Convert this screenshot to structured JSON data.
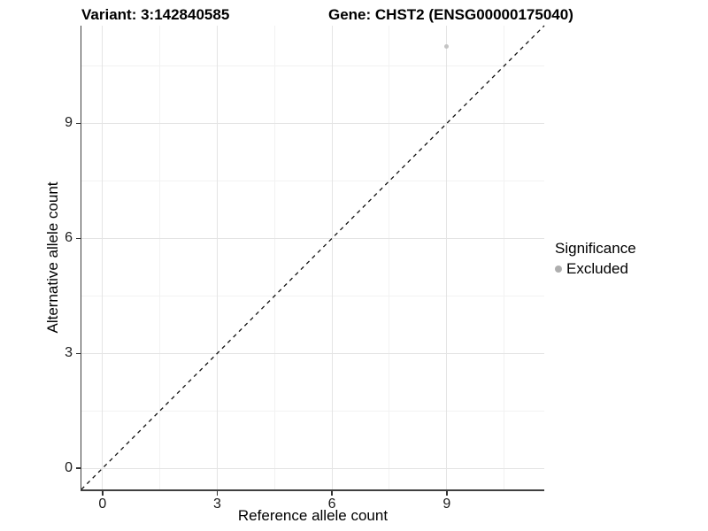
{
  "chart_data": {
    "type": "scatter",
    "title_left": "Variant: 3:142840585",
    "title_right": "Gene: CHST2 (ENSG00000175040)",
    "xlabel": "Reference allele count",
    "ylabel": "Alternative allele count",
    "xlim": [
      -0.55,
      11.55
    ],
    "ylim": [
      -0.55,
      11.55
    ],
    "x_major_ticks": [
      0,
      3,
      6,
      9
    ],
    "y_major_ticks": [
      0,
      3,
      6,
      9
    ],
    "x_minor_ticks": [
      1.5,
      4.5,
      7.5,
      10.5
    ],
    "y_minor_ticks": [
      1.5,
      4.5,
      7.5,
      10.5
    ],
    "grid": true,
    "points": [
      {
        "x": 9,
        "y": 11,
        "significance": "Excluded"
      }
    ],
    "reference_line": {
      "type": "identity",
      "style": "dashed"
    },
    "legend": {
      "title": "Significance",
      "position": "right",
      "entries": [
        {
          "label": "Excluded",
          "color": "#aeaeae"
        }
      ]
    },
    "colors": {
      "point": "#c4c4c4",
      "grid_major": "#e4e4e4",
      "grid_minor": "#f2f2f2",
      "axis_line": "#3f3f3f",
      "tick": "#333333",
      "dashed_line": "#111111",
      "background": "#ffffff"
    }
  }
}
